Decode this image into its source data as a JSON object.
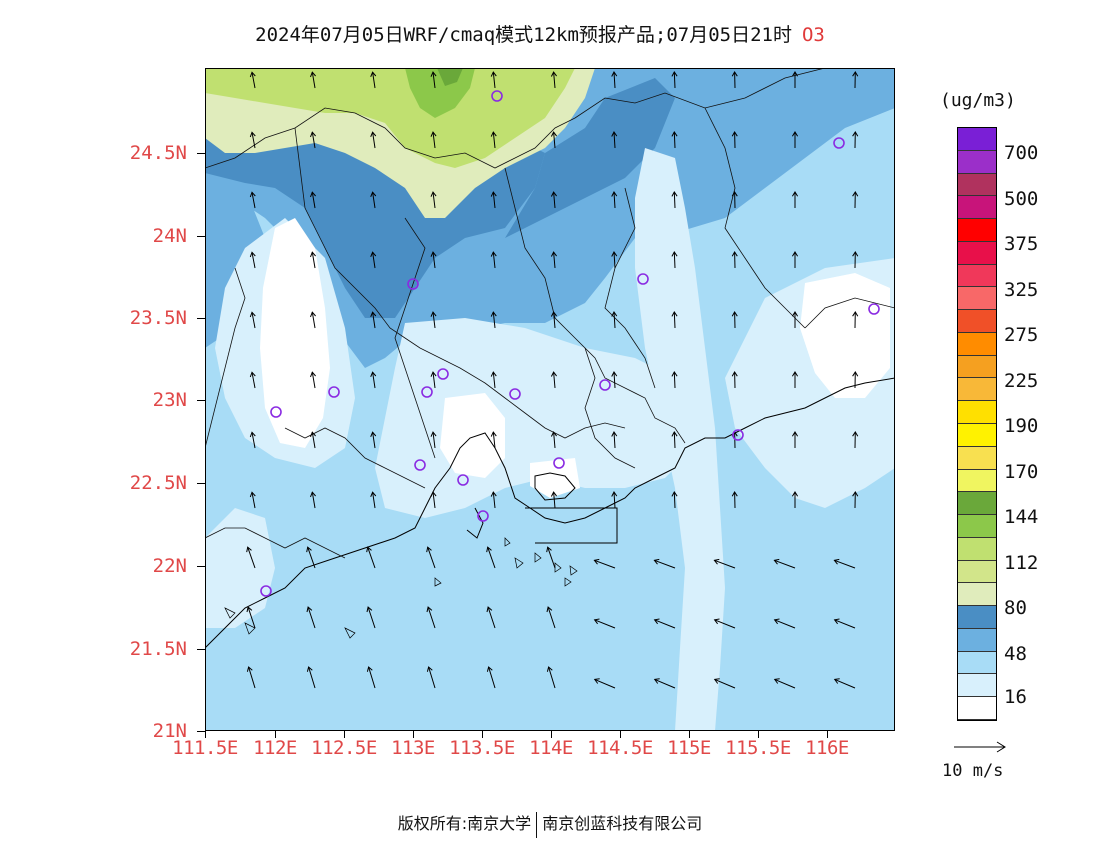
{
  "title": {
    "text": "2024年07月05日WRF/cmaq模式12km预报产品;07月05日21时",
    "species": "O3"
  },
  "axes": {
    "y_labels": [
      "24.5N",
      "24N",
      "23.5N",
      "23N",
      "22.5N",
      "22N",
      "21.5N",
      "21N"
    ],
    "x_labels": [
      "111.5E",
      "112E",
      "112.5E",
      "113E",
      "113.5E",
      "114E",
      "114.5E",
      "115E",
      "115.5E",
      "116E"
    ],
    "label_color": "#e04848"
  },
  "legend": {
    "unit": "(ug/m3)",
    "labels": [
      "700",
      "500",
      "375",
      "325",
      "275",
      "225",
      "190",
      "170",
      "144",
      "112",
      "80",
      "48",
      "16"
    ],
    "colors_top_to_bottom": [
      "#7a1fd6",
      "#9b2fc9",
      "#b0325e",
      "#c8147a",
      "#ff0000",
      "#e8104a",
      "#f0385a",
      "#f86868",
      "#f05028",
      "#ff8c00",
      "#f5a020",
      "#f8b838",
      "#ffe000",
      "#fff200",
      "#f8e050",
      "#f0f560",
      "#6aa83a",
      "#8cc84a",
      "#c0e070",
      "#d2e58a",
      "#e0ecbc",
      "#4a8ec4",
      "#6cb0e0",
      "#a8dcf6",
      "#d8f0fc",
      "#ffffff"
    ]
  },
  "map": {
    "shading": [
      {
        "name": "very-low",
        "color": "#ffffff"
      },
      {
        "name": "low",
        "color": "#d8f0fc"
      },
      {
        "name": "medium-low",
        "color": "#a8dcf6"
      },
      {
        "name": "medium",
        "color": "#6cb0e0"
      },
      {
        "name": "medium-high",
        "color": "#4a8ec4"
      },
      {
        "name": "high-1",
        "color": "#e0ecbc"
      },
      {
        "name": "high-2",
        "color": "#c0e070"
      },
      {
        "name": "high-3",
        "color": "#8cc84a"
      }
    ],
    "station_marker_color": "#8a2be2",
    "station_count": 17
  },
  "reference_vector": {
    "label": "10 m/s"
  },
  "footer": {
    "left": "版权所有:南京大学",
    "right": "南京创蓝科技有限公司"
  }
}
